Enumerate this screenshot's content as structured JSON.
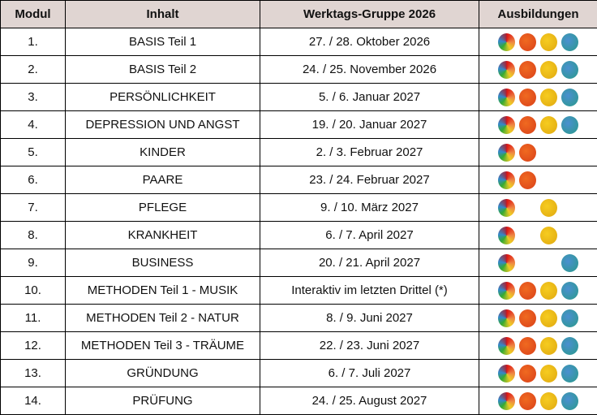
{
  "headers": [
    "Modul",
    "Inhalt",
    "Werktags-Gruppe 2026",
    "Ausbildungen"
  ],
  "dot_colors": {
    "multi": "rainbow",
    "orange": "#e0501c",
    "yellow": "#f0c018",
    "blue": "#3a8fc0"
  },
  "rows": [
    {
      "modul": "1.",
      "inhalt": "BASIS Teil 1",
      "datum": "27. / 28. Oktober 2026",
      "dots": [
        1,
        1,
        1,
        1
      ]
    },
    {
      "modul": "2.",
      "inhalt": "BASIS Teil 2",
      "datum": "24. / 25. November 2026",
      "dots": [
        1,
        1,
        1,
        1
      ]
    },
    {
      "modul": "3.",
      "inhalt": "PERSÖNLICHKEIT",
      "datum": "5. / 6. Januar 2027",
      "dots": [
        1,
        1,
        1,
        1
      ]
    },
    {
      "modul": "4.",
      "inhalt": "DEPRESSION UND ANGST",
      "datum": "19. / 20. Januar 2027",
      "dots": [
        1,
        1,
        1,
        1
      ]
    },
    {
      "modul": "5.",
      "inhalt": "KINDER",
      "datum": "2. / 3. Februar 2027",
      "dots": [
        1,
        1,
        0,
        0
      ]
    },
    {
      "modul": "6.",
      "inhalt": "PAARE",
      "datum": "23. / 24. Februar 2027",
      "dots": [
        1,
        1,
        0,
        0
      ]
    },
    {
      "modul": "7.",
      "inhalt": "PFLEGE",
      "datum": "9. / 10. März 2027",
      "dots": [
        1,
        0,
        1,
        0
      ]
    },
    {
      "modul": "8.",
      "inhalt": "KRANKHEIT",
      "datum": "6. / 7. April 2027",
      "dots": [
        1,
        0,
        1,
        0
      ]
    },
    {
      "modul": "9.",
      "inhalt": "BUSINESS",
      "datum": "20. / 21. April 2027",
      "dots": [
        1,
        0,
        0,
        1
      ]
    },
    {
      "modul": "10.",
      "inhalt": "METHODEN Teil 1 - MUSIK",
      "datum": "Interaktiv im letzten Drittel (*)",
      "dots": [
        1,
        1,
        1,
        1
      ]
    },
    {
      "modul": "11.",
      "inhalt": "METHODEN Teil 2 -  NATUR",
      "datum": "8. / 9. Juni 2027",
      "dots": [
        1,
        1,
        1,
        1
      ]
    },
    {
      "modul": "12.",
      "inhalt": "METHODEN Teil 3 - TRÄUME",
      "datum": "22. / 23. Juni 2027",
      "dots": [
        1,
        1,
        1,
        1
      ]
    },
    {
      "modul": "13.",
      "inhalt": "GRÜNDUNG",
      "datum": "6. / 7. Juli 2027",
      "dots": [
        1,
        1,
        1,
        1
      ]
    },
    {
      "modul": "14.",
      "inhalt": "PRÜFUNG",
      "datum": "24. / 25. August 2027",
      "dots": [
        1,
        1,
        1,
        1
      ]
    }
  ]
}
